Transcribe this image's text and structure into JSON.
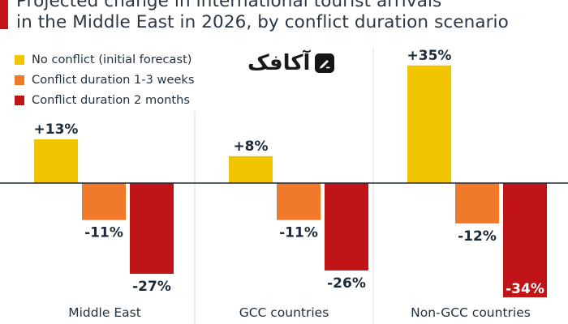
{
  "title": {
    "line1": "Projected change in international tourist arrivals",
    "line2": "in the Middle East in 2026, by conflict duration scenario"
  },
  "logo": {
    "text": "آکافک",
    "icon": "pen-icon"
  },
  "colors": {
    "accent": "#c5131a",
    "baseline": "#1c2a38",
    "divider": "#d7dbe0"
  },
  "chart_data": {
    "type": "bar",
    "categories": [
      "Middle East",
      "GCC countries",
      "Non-GCC countries"
    ],
    "series": [
      {
        "name": "No conflict (initial forecast)",
        "color": "#f1c400",
        "values": [
          13,
          8,
          35
        ],
        "labels": [
          "+13%",
          "+8%",
          "+35%"
        ]
      },
      {
        "name": "Conflict duration 1-3 weeks",
        "color": "#f07a2a",
        "values": [
          -11,
          -11,
          -12
        ],
        "labels": [
          "-11%",
          "-11%",
          "-12%"
        ]
      },
      {
        "name": "Conflict duration 2 months",
        "color": "#c01419",
        "values": [
          -27,
          -26,
          -34
        ],
        "labels": [
          "-27%",
          "-26%",
          "-34%"
        ]
      }
    ],
    "unit": "%",
    "ylim": [
      -35,
      36
    ],
    "grid": false,
    "legend_position": "top-left"
  }
}
